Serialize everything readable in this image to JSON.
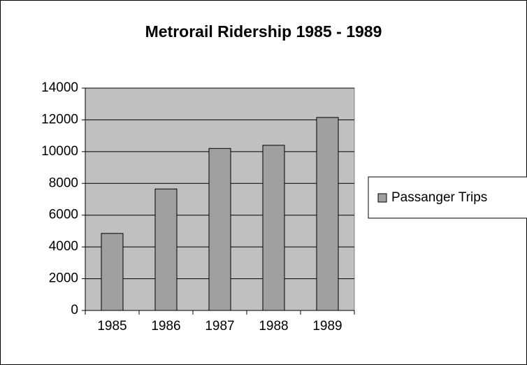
{
  "chart_data": {
    "type": "bar",
    "title": "Metrorail Ridership 1985 - 1989",
    "categories": [
      "1985",
      "1986",
      "1987",
      "1988",
      "1989"
    ],
    "series": [
      {
        "name": "Passanger Trips",
        "color": "#a0a0a0",
        "values": [
          4850,
          7650,
          10200,
          10400,
          12150
        ]
      }
    ],
    "ylim": [
      0,
      14000
    ],
    "yticks": [
      0,
      2000,
      4000,
      6000,
      8000,
      10000,
      12000,
      14000
    ],
    "grid": true,
    "legend": "right"
  }
}
